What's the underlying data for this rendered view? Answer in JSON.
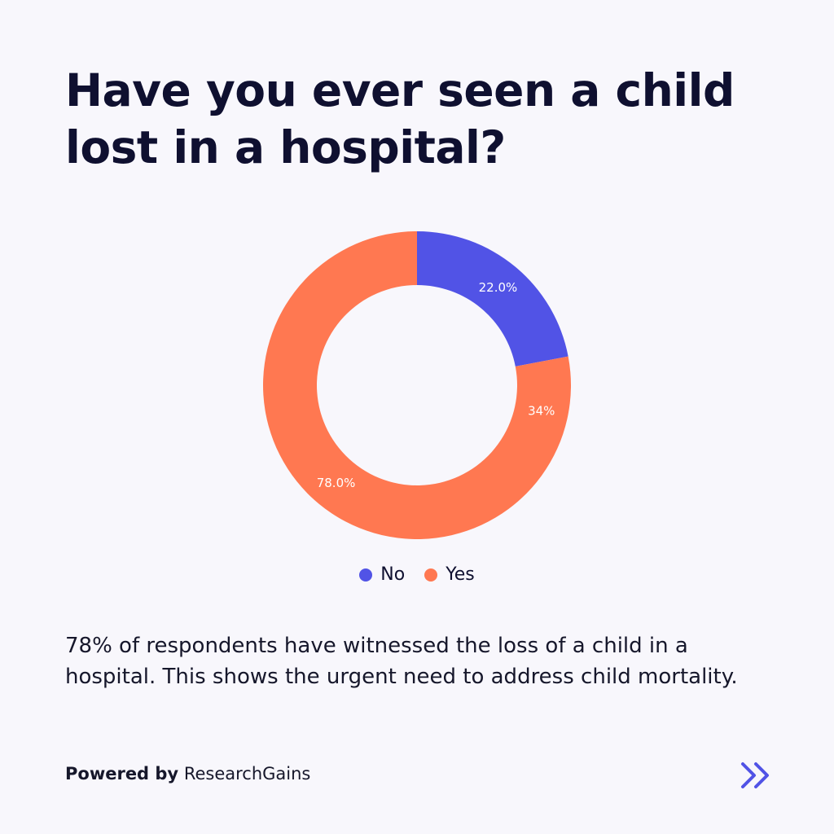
{
  "title": "Have you ever seen a child lost in a hospital?",
  "chart_data": {
    "type": "pie",
    "donut": true,
    "slices": [
      {
        "label": "No",
        "value": 22.0,
        "display": "22.0%",
        "color": "#5153e6"
      },
      {
        "label": "Yes",
        "value": 78.0,
        "display": "78.0%",
        "color": "#ff7851"
      }
    ],
    "extra_labels": [
      {
        "text": "34%",
        "slice": "Yes"
      }
    ],
    "legend": {
      "position": "bottom",
      "items": [
        "No",
        "Yes"
      ]
    }
  },
  "summary": "78% of respondents have witnessed the loss of a child in a hospital. This shows the urgent need to address child mortality.",
  "footer": {
    "powered_by": "Powered by",
    "brand": "ResearchGains"
  },
  "icons": {
    "next": "double-chevron-right-icon"
  },
  "colors": {
    "background": "#f8f7fc",
    "title": "#0f1030",
    "accent": "#5153e6"
  }
}
